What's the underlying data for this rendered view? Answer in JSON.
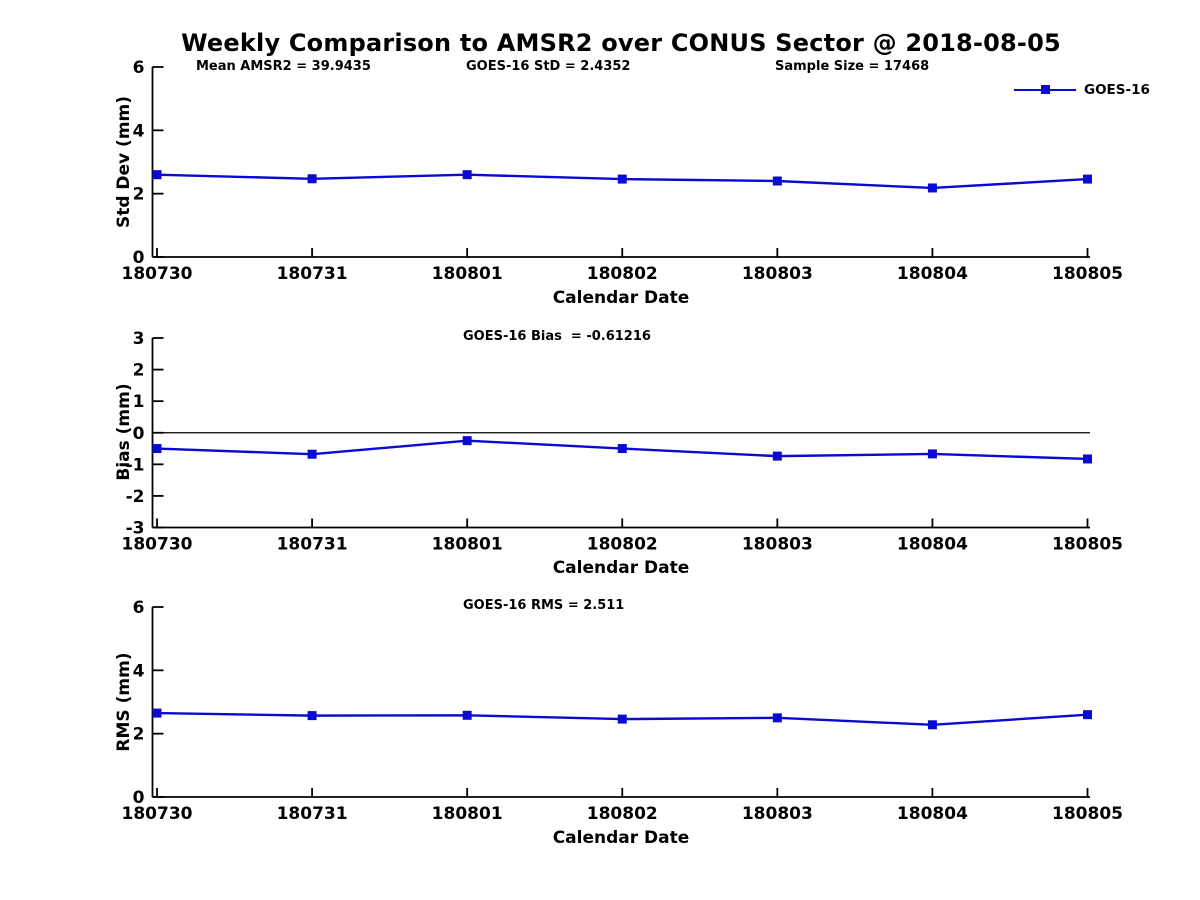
{
  "page": {
    "title": "Weekly Comparison to AMSR2 over CONUS Sector @ 2018-08-05",
    "background": "#ffffff"
  },
  "colors": {
    "line": "#0a0ad2",
    "axis": "#000000",
    "text": "#000000",
    "zero_line": "#000000"
  },
  "legend": {
    "label": "GOES-16",
    "marker": "square",
    "position": "upper-right-outside"
  },
  "chart_data": [
    {
      "type": "line",
      "annotations": [
        {
          "text": "Mean AMSR2 = 39.9435"
        },
        {
          "text": "GOES-16 StD = 2.4352"
        },
        {
          "text": "Sample Size = 17468"
        }
      ],
      "ylabel": "Std Dev (mm)",
      "xlabel": "Calendar Date",
      "categories": [
        "180730",
        "180731",
        "180801",
        "180802",
        "180803",
        "180804",
        "180805"
      ],
      "series": [
        {
          "name": "GOES-16",
          "values": [
            2.6,
            2.47,
            2.6,
            2.46,
            2.4,
            2.18,
            2.46
          ]
        }
      ],
      "ylim": [
        0,
        6
      ],
      "yticks": [
        0,
        2,
        4,
        6
      ],
      "grid": false,
      "zero_line": false
    },
    {
      "type": "line",
      "subtitle": "GOES-16 Bias  = -0.61216",
      "ylabel": "Bias (mm)",
      "xlabel": "Calendar Date",
      "categories": [
        "180730",
        "180731",
        "180801",
        "180802",
        "180803",
        "180804",
        "180805"
      ],
      "series": [
        {
          "name": "GOES-16",
          "values": [
            -0.5,
            -0.68,
            -0.25,
            -0.5,
            -0.74,
            -0.67,
            -0.83
          ]
        }
      ],
      "ylim": [
        -3,
        3
      ],
      "yticks": [
        -3,
        -2,
        -1,
        0,
        1,
        2,
        3
      ],
      "grid": false,
      "zero_line": true
    },
    {
      "type": "line",
      "subtitle": "GOES-16 RMS = 2.511",
      "ylabel": "RMS (mm)",
      "xlabel": "Calendar Date",
      "categories": [
        "180730",
        "180731",
        "180801",
        "180802",
        "180803",
        "180804",
        "180805"
      ],
      "series": [
        {
          "name": "GOES-16",
          "values": [
            2.65,
            2.57,
            2.58,
            2.46,
            2.5,
            2.28,
            2.6
          ]
        }
      ],
      "ylim": [
        0,
        6
      ],
      "yticks": [
        0,
        2,
        4,
        6
      ],
      "grid": false,
      "zero_line": false
    }
  ]
}
